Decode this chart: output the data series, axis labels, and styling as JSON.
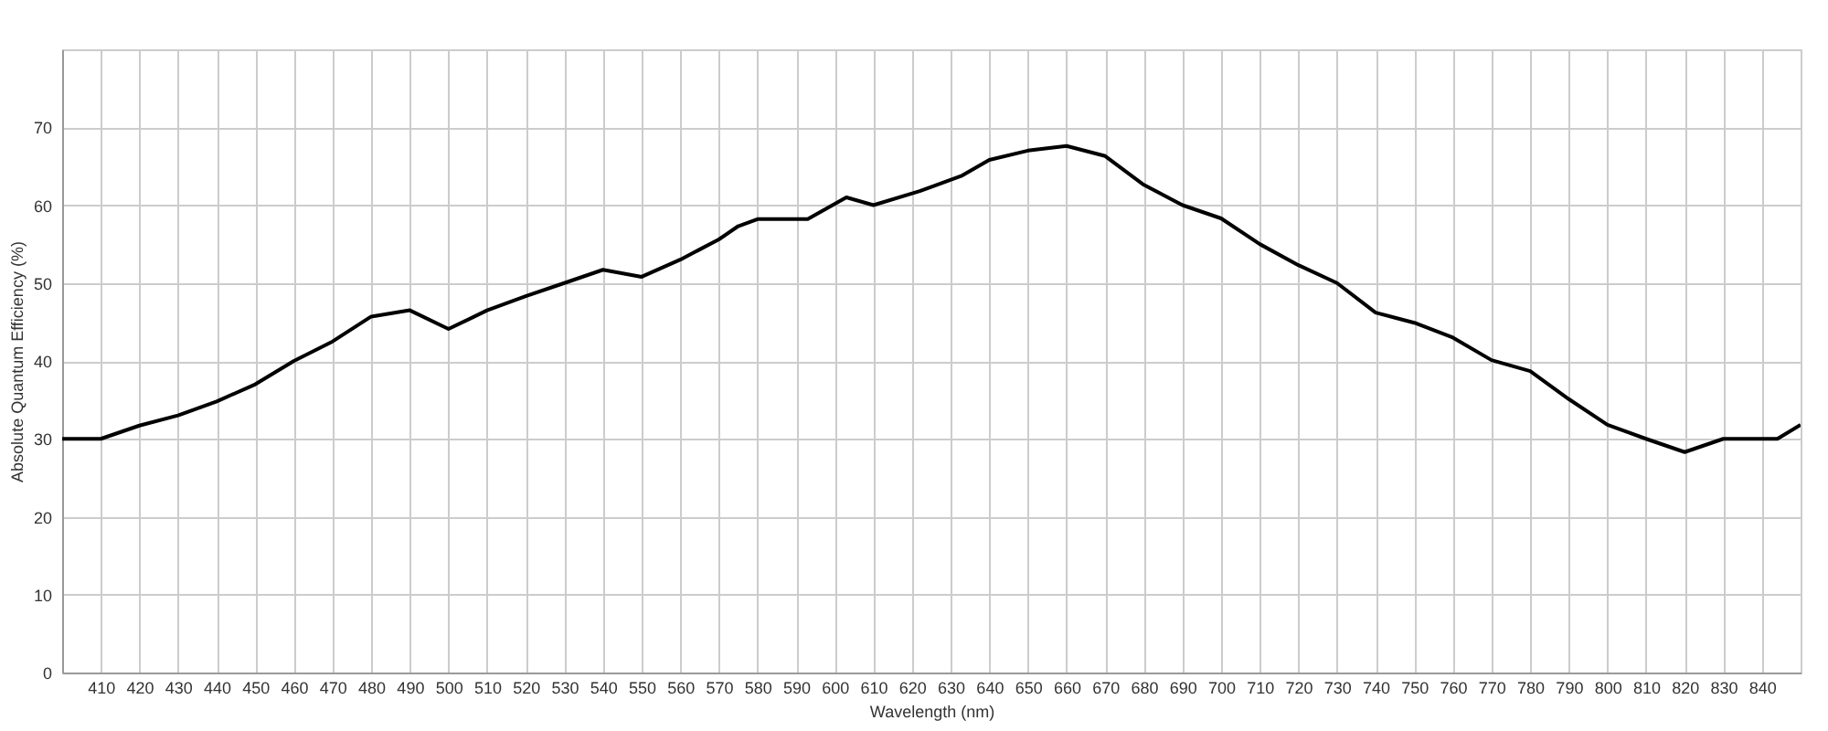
{
  "chart_data": {
    "type": "line",
    "xlabel": "Wavelength (nm)",
    "ylabel": "Absolute Quantum Efficiency (%)",
    "x": [
      400,
      410,
      420,
      430,
      440,
      450,
      460,
      470,
      480,
      490,
      500,
      510,
      520,
      530,
      540,
      550,
      560,
      570,
      575,
      580,
      593,
      603,
      610,
      622,
      633,
      640,
      650,
      660,
      670,
      680,
      690,
      700,
      710,
      720,
      730,
      740,
      750,
      760,
      770,
      780,
      790,
      800,
      810,
      820,
      830,
      844,
      850
    ],
    "series": [
      {
        "color": "#000000",
        "values": [
          30,
          30,
          31.7,
          33,
          34.8,
          37,
          40,
          42.5,
          45.7,
          46.5,
          44.1,
          46.5,
          48.3,
          50,
          51.7,
          50.8,
          53,
          55.6,
          57.3,
          58.2,
          58.2,
          61,
          60,
          61.8,
          63.8,
          65.8,
          67,
          67.6,
          66.3,
          62.6,
          60,
          58.3,
          55,
          52.3,
          50,
          46.2,
          44.9,
          43,
          40.1,
          38.7,
          35.1,
          31.8,
          30,
          28.3,
          30,
          30,
          31.8
        ]
      }
    ],
    "xlim": [
      400,
      850
    ],
    "xticks": [
      410,
      420,
      430,
      440,
      450,
      460,
      470,
      480,
      490,
      500,
      510,
      520,
      530,
      540,
      550,
      560,
      570,
      580,
      590,
      600,
      610,
      620,
      630,
      640,
      650,
      660,
      670,
      680,
      690,
      700,
      710,
      720,
      730,
      740,
      750,
      760,
      770,
      780,
      790,
      800,
      810,
      820,
      830,
      840
    ],
    "ylim": [
      0,
      80
    ],
    "yticks": [
      0,
      10,
      20,
      30,
      40,
      50,
      60,
      70
    ],
    "grid": true,
    "marker": "none",
    "line_style": "solid"
  }
}
